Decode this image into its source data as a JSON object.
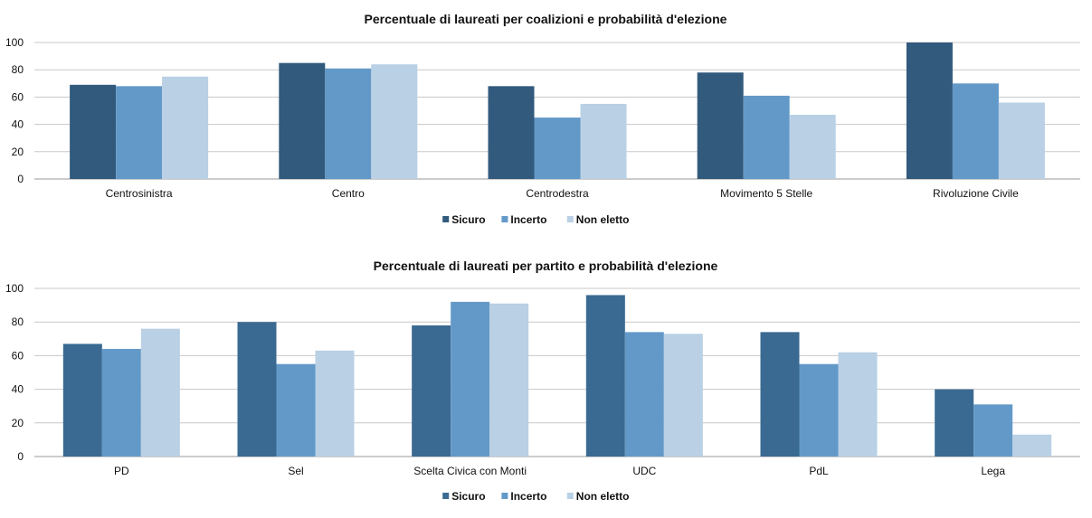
{
  "chart_data": [
    {
      "type": "bar",
      "title": "Percentuale di laureati per coalizioni e probabilità d'elezione",
      "xlabel": "",
      "ylabel": "",
      "ylim": [
        0,
        100
      ],
      "yticks": [
        "0",
        "20",
        "40",
        "60",
        "80",
        "100"
      ],
      "grid": true,
      "legend": "bottom",
      "categories": [
        "Centrosinistra",
        "Centro",
        "Centrodestra",
        "Movimento 5 Stelle",
        "Rivoluzione Civile"
      ],
      "series": [
        {
          "name": "Sicuro",
          "color": "#325a7d",
          "values": [
            69,
            85,
            68,
            78,
            100
          ]
        },
        {
          "name": "Incerto",
          "color": "#6399c8",
          "values": [
            68,
            81,
            45,
            61,
            70
          ]
        },
        {
          "name": "Non eletto",
          "color": "#b9d0e5",
          "values": [
            75,
            84,
            55,
            47,
            56
          ]
        }
      ]
    },
    {
      "type": "bar",
      "title": "Percentuale di laureati per partito e probabilità d'elezione",
      "xlabel": "",
      "ylabel": "",
      "ylim": [
        0,
        100
      ],
      "yticks": [
        "0",
        "20",
        "40",
        "60",
        "80",
        "100"
      ],
      "grid": true,
      "legend": "bottom",
      "categories": [
        "PD",
        "Sel",
        "Scelta Civica con Monti",
        "UDC",
        "PdL",
        "Lega"
      ],
      "series": [
        {
          "name": "Sicuro",
          "color": "#3a6a91",
          "values": [
            67,
            80,
            78,
            96,
            74,
            40
          ]
        },
        {
          "name": "Incerto",
          "color": "#6399c8",
          "values": [
            64,
            55,
            92,
            74,
            55,
            31
          ]
        },
        {
          "name": "Non eletto",
          "color": "#b9d0e5",
          "values": [
            76,
            63,
            91,
            73,
            62,
            13
          ]
        }
      ]
    }
  ]
}
